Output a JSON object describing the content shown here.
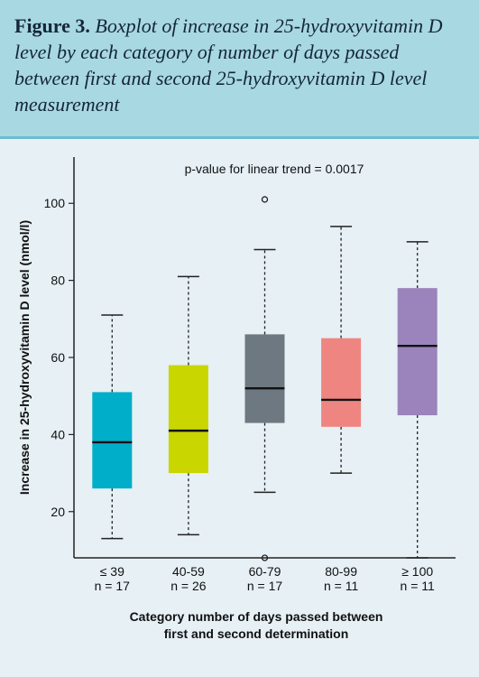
{
  "figure": {
    "label": "Figure 3.",
    "caption": "Boxplot of increase in 25-hydroxyvitamin D level by each category of number of days passed between first and second 25-hydroxyvitamin D level measurement"
  },
  "chart_data": {
    "type": "boxplot",
    "annotation": "p-value for linear trend = 0.0017",
    "ylabel": "Increase in 25-hydroxyvitamin D level (nmol/l)",
    "xlabel_line1": "Category number of days passed between",
    "xlabel_line2": "first and second determination",
    "ylim": [
      8,
      112
    ],
    "yticks": [
      20,
      40,
      60,
      80,
      100
    ],
    "ytick_labels": [
      "20",
      "40",
      "60",
      "80",
      "100"
    ],
    "grid": false,
    "categories": [
      {
        "label": "≤ 39",
        "n_label": "n = 17",
        "color": "#00aec9",
        "whisker_low": 13,
        "q1": 26,
        "median": 38,
        "q3": 51,
        "whisker_high": 71,
        "outliers": []
      },
      {
        "label": "40-59",
        "n_label": "n = 26",
        "color": "#c9d600",
        "whisker_low": 14,
        "q1": 30,
        "median": 41,
        "q3": 58,
        "whisker_high": 81,
        "outliers": []
      },
      {
        "label": "60-79",
        "n_label": "n = 17",
        "color": "#6d7880",
        "whisker_low": 25,
        "q1": 43,
        "median": 52,
        "q3": 66,
        "whisker_high": 88,
        "outliers": [
          8,
          101
        ]
      },
      {
        "label": "80-99",
        "n_label": "n = 11",
        "color": "#ef8580",
        "whisker_low": 30,
        "q1": 42,
        "median": 49,
        "q3": 65,
        "whisker_high": 94,
        "outliers": []
      },
      {
        "label": "≥ 100",
        "n_label": "n = 11",
        "color": "#9b83bb",
        "whisker_low": 8,
        "q1": 45,
        "median": 63,
        "q3": 78,
        "whisker_high": 90,
        "outliers": []
      }
    ]
  }
}
